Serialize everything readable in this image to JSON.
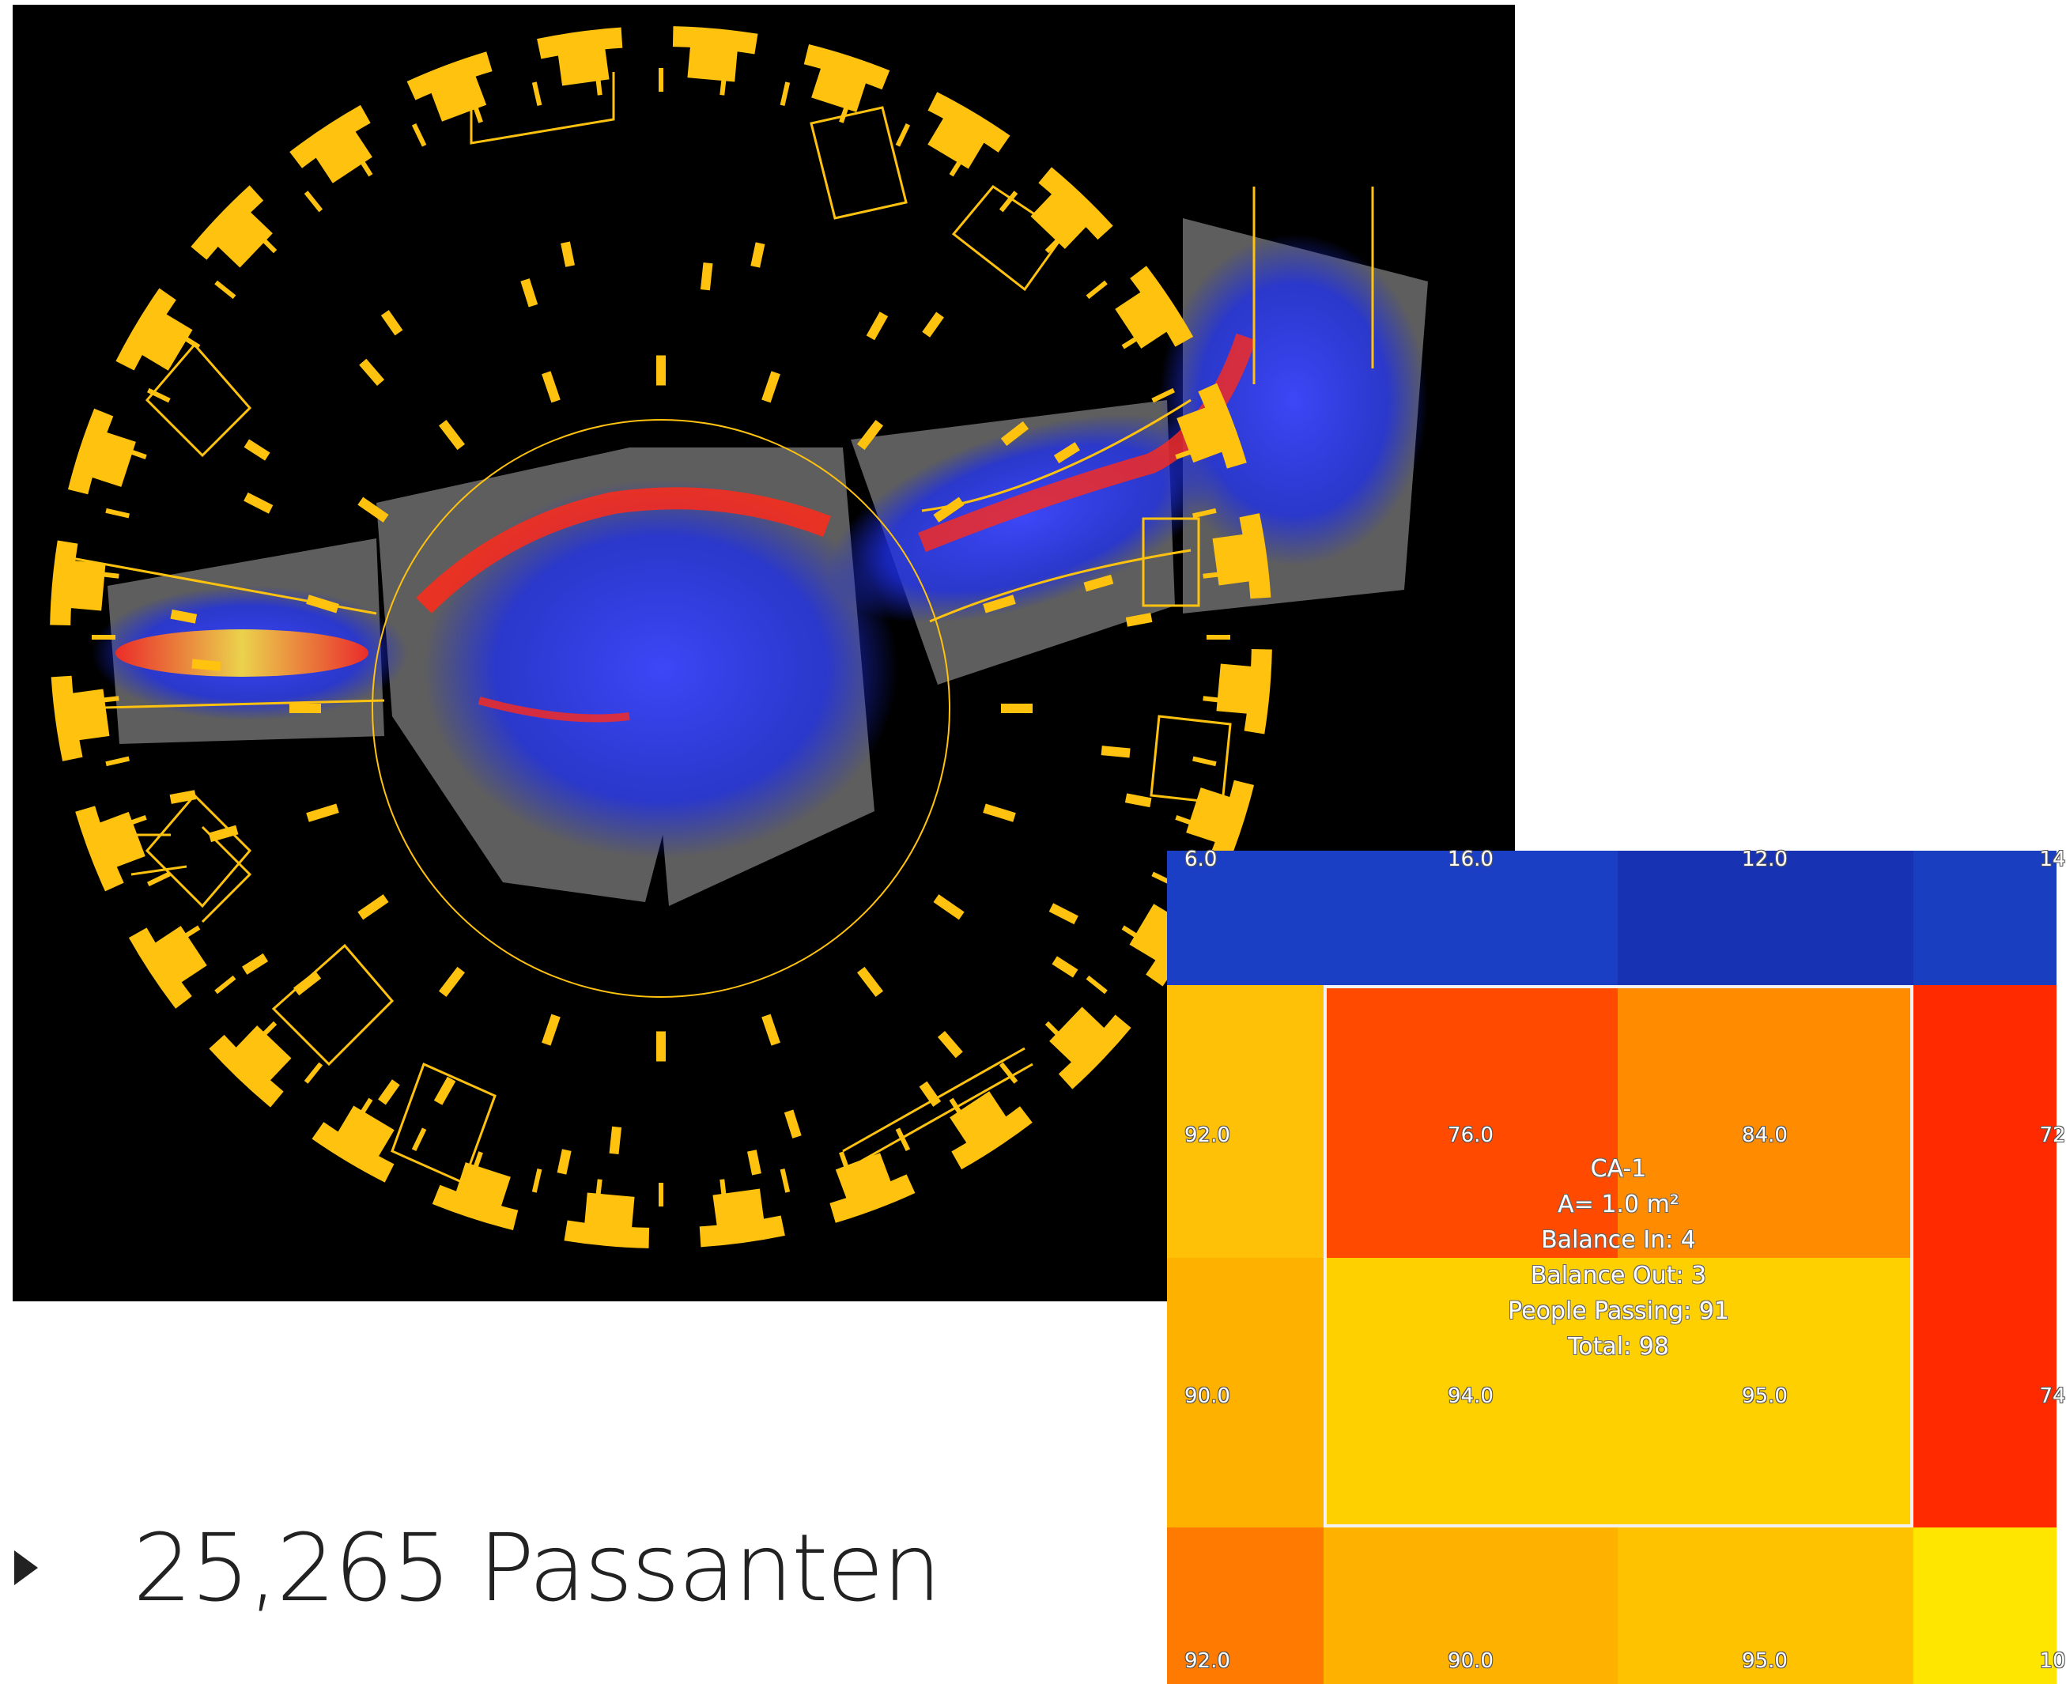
{
  "colors": {
    "structure": "#FFC20E",
    "background": "#000000",
    "heat_low": "#1E2FE6",
    "heat_high": "#FF2A1A"
  },
  "floorplan": {
    "description_icon": "station-floorplan-heatmap"
  },
  "headline": {
    "count": "25,265",
    "label": "Passanten"
  },
  "grid": {
    "rows": [
      {
        "values": [
          "6.0",
          "16.0",
          "12.0",
          "14"
        ],
        "colors": [
          "#1b3fc4",
          "#1b3fc4",
          "#1832b4",
          "#1a3ec0"
        ]
      },
      {
        "values": [
          "92.0",
          "76.0",
          "84.0",
          "72"
        ],
        "colors": [
          "#ffc107",
          "#ff4a00",
          "#ff8b00",
          "#ff2a00"
        ]
      },
      {
        "values": [
          "",
          "",
          "",
          ""
        ],
        "colors": [
          "#ffb100",
          "#ffd000",
          "#ffd000",
          "#ff2a00"
        ]
      },
      {
        "values": [
          "90.0",
          "94.0",
          "95.0",
          "74"
        ],
        "colors": [
          "#ffb100",
          "#ffd000",
          "#ffd000",
          "#ff2a00"
        ]
      },
      {
        "values": [
          "92.0",
          "90.0",
          "95.0",
          "10"
        ],
        "colors": [
          "#ff7a00",
          "#ffb100",
          "#ffc200",
          "#ffe600"
        ]
      }
    ],
    "zone": {
      "name": "CA-1",
      "area": "A= 1.0 m²",
      "balance_in": "Balance In: 4",
      "balance_out": "Balance Out: 3",
      "people_passing": "People Passing: 91",
      "total": "Total: 98"
    }
  }
}
